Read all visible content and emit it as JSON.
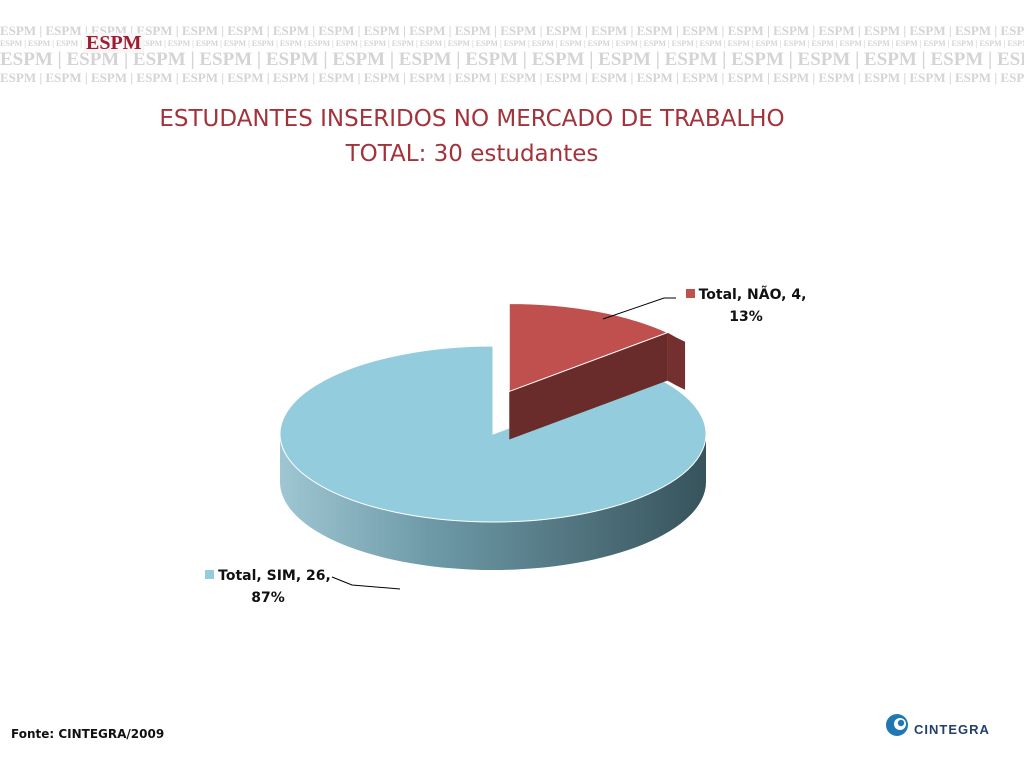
{
  "header": {
    "banner_word": "ESPM",
    "brand": "ESPM"
  },
  "chart_data": {
    "type": "pie",
    "title": "ESTUDANTES INSERIDOS NO MERCADO DE TRABALHO",
    "subtitle": "TOTAL: 30 estudantes",
    "style": "3d-exploded",
    "slices": [
      {
        "series": "Total",
        "category": "NÃO",
        "value": 4,
        "percent": 13,
        "color": "#c0504d",
        "line1": "Total, NÃO, 4,",
        "line2": "13%"
      },
      {
        "series": "Total",
        "category": "SIM",
        "value": 26,
        "percent": 87,
        "color": "#93cddd",
        "line1": "Total, SIM, 26,",
        "line2": "87%"
      }
    ]
  },
  "footer": {
    "source": "Fonte: CINTEGRA/2009",
    "logo_text": "CINTEGRA",
    "logo_icon": "cintegra-logo-icon"
  }
}
